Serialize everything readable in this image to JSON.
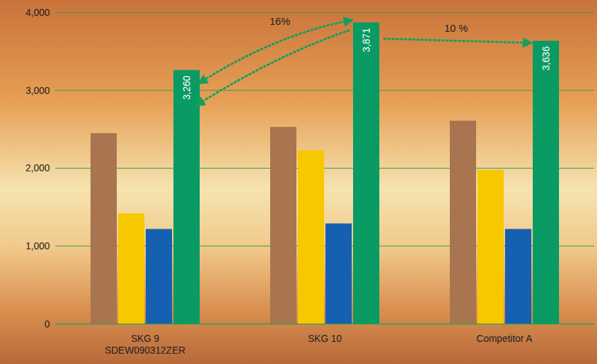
{
  "chart_data": {
    "type": "bar",
    "categories": [
      "SKG 9\nSDEW090312ZER",
      "SKG 10",
      "Competitor A"
    ],
    "series": [
      {
        "color": "#a87550",
        "values": [
          2450,
          2530,
          2610
        ]
      },
      {
        "color": "#f7c800",
        "values": [
          1420,
          2230,
          1980
        ]
      },
      {
        "color": "#1560b0",
        "values": [
          1220,
          1290,
          1220
        ]
      },
      {
        "color": "#0a9a64",
        "values": [
          3260,
          3871,
          3636
        ],
        "data_labels": true,
        "value_labels": [
          "3,260",
          "3,871",
          "3,636"
        ]
      }
    ],
    "ylim": [
      0,
      4000
    ],
    "yticks": [
      0,
      {
        "value": 1000,
        "label": "1,000"
      },
      {
        "value": 2000,
        "label": "2,000"
      },
      {
        "value": 3000,
        "label": "3,000"
      },
      {
        "value": 4000,
        "label": "4,000"
      }
    ],
    "grid": true,
    "annotations": [
      "16%",
      "10 %"
    ]
  }
}
